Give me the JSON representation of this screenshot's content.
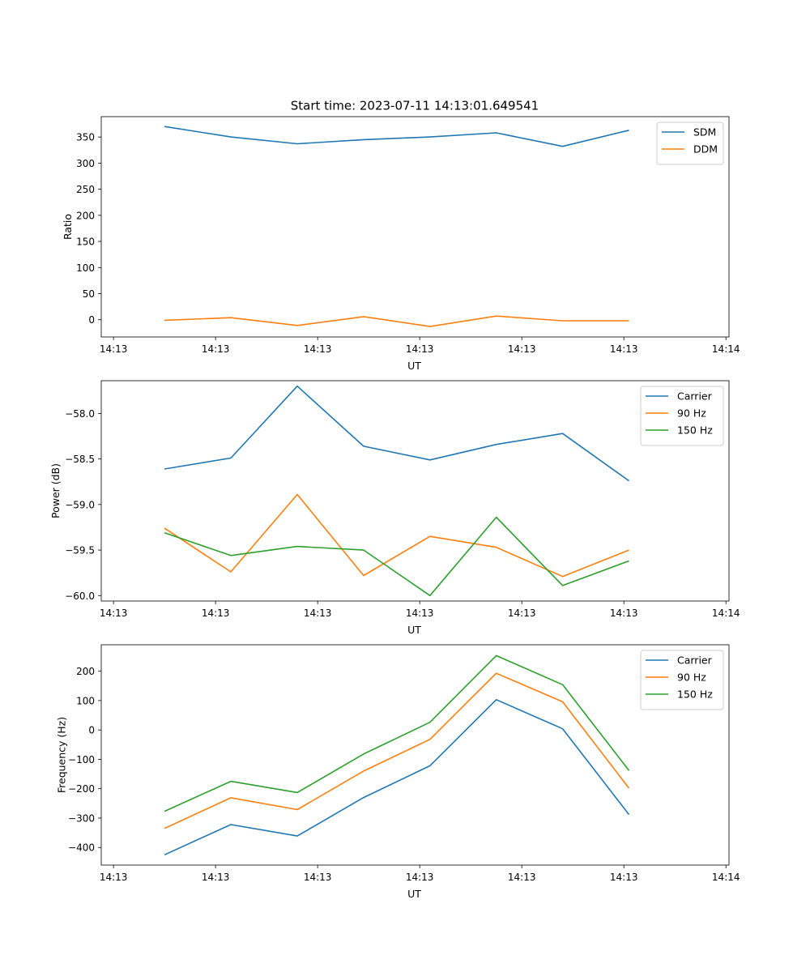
{
  "title": "Start time: 2023-07-11 14:13:01.649541",
  "chart_data": [
    {
      "type": "line",
      "xlabel": "UT",
      "ylabel": "Ratio",
      "x_ticks": [
        "14:13",
        "14:13",
        "14:13",
        "14:13",
        "14:13",
        "14:13",
        "14:14"
      ],
      "x_tick_values": [
        0,
        1,
        2,
        3,
        4,
        5,
        6
      ],
      "xlim": [
        -0.12,
        6.03
      ],
      "ylim": [
        -33,
        389
      ],
      "y_ticks": [
        0,
        50,
        100,
        150,
        200,
        250,
        300,
        350
      ],
      "legend_position": "top-right",
      "x": [
        0.5,
        1.15,
        1.8,
        2.45,
        3.1,
        3.75,
        4.4,
        5.05
      ],
      "series": [
        {
          "name": "SDM",
          "color": "#1f77b4",
          "values": [
            370,
            350,
            337,
            345,
            350,
            358,
            332,
            363
          ]
        },
        {
          "name": "DDM",
          "color": "#ff7f0e",
          "values": [
            -1,
            4,
            -11,
            6,
            -13,
            7,
            -2,
            -2
          ]
        }
      ]
    },
    {
      "type": "line",
      "xlabel": "UT",
      "ylabel": "Power (dB)",
      "x_ticks": [
        "14:13",
        "14:13",
        "14:13",
        "14:13",
        "14:13",
        "14:13",
        "14:14"
      ],
      "x_tick_values": [
        0,
        1,
        2,
        3,
        4,
        5,
        6
      ],
      "xlim": [
        -0.12,
        6.03
      ],
      "ylim": [
        -60.06,
        -57.64
      ],
      "y_ticks": [
        -60.0,
        -59.5,
        -59.0,
        -58.5,
        -58.0
      ],
      "legend_position": "top-right",
      "x": [
        0.5,
        1.15,
        1.8,
        2.45,
        3.1,
        3.75,
        4.4,
        5.05
      ],
      "series": [
        {
          "name": "Carrier",
          "color": "#1f77b4",
          "values": [
            -58.61,
            -58.49,
            -57.7,
            -58.36,
            -58.51,
            -58.34,
            -58.22,
            -58.74
          ]
        },
        {
          "name": "90 Hz",
          "color": "#ff7f0e",
          "values": [
            -59.26,
            -59.74,
            -58.89,
            -59.78,
            -59.35,
            -59.47,
            -59.79,
            -59.5
          ]
        },
        {
          "name": "150 Hz",
          "color": "#2ca02c",
          "values": [
            -59.31,
            -59.56,
            -59.46,
            -59.5,
            -60.0,
            -59.14,
            -59.89,
            -59.62
          ]
        }
      ]
    },
    {
      "type": "line",
      "xlabel": "UT",
      "ylabel": "Frequency (Hz)",
      "x_ticks": [
        "14:13",
        "14:13",
        "14:13",
        "14:13",
        "14:13",
        "14:13",
        "14:14"
      ],
      "x_tick_values": [
        0,
        1,
        2,
        3,
        4,
        5,
        6
      ],
      "xlim": [
        -0.12,
        6.03
      ],
      "ylim": [
        -460,
        290
      ],
      "y_ticks": [
        -400,
        -300,
        -200,
        -100,
        0,
        100,
        200
      ],
      "legend_position": "top-right",
      "x": [
        0.5,
        1.15,
        1.8,
        2.45,
        3.1,
        3.75,
        4.4,
        5.05
      ],
      "series": [
        {
          "name": "Carrier",
          "color": "#1f77b4",
          "values": [
            -425,
            -322,
            -361,
            -230,
            -122,
            103,
            4,
            -288
          ]
        },
        {
          "name": "90 Hz",
          "color": "#ff7f0e",
          "values": [
            -335,
            -231,
            -271,
            -140,
            -32,
            193,
            96,
            -198
          ]
        },
        {
          "name": "150 Hz",
          "color": "#2ca02c",
          "values": [
            -277,
            -175,
            -213,
            -82,
            26,
            253,
            154,
            -138
          ]
        }
      ]
    }
  ]
}
